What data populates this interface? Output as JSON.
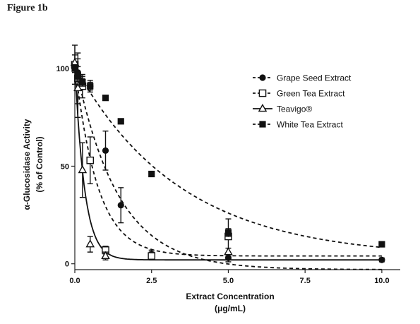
{
  "figure_label": "Figure 1b",
  "chart_data": {
    "type": "scatter",
    "xlabel": "Extract Concentration",
    "xlabel_unit": "(μg/mL)",
    "ylabel": "α-Glucosidase Activity",
    "ylabel_unit": "(% of Control)",
    "xlim": [
      0,
      10.6
    ],
    "ylim": [
      -3,
      112
    ],
    "x_ticks": [
      0.0,
      2.5,
      5.0,
      7.5,
      10.0
    ],
    "x_tick_labels": [
      "0.0",
      "2.5",
      "5.0",
      "7.5",
      "10.0"
    ],
    "y_ticks": [
      0,
      50,
      100
    ],
    "y_tick_labels": [
      "0",
      "50",
      "100"
    ],
    "legend_position": "top-right",
    "series": [
      {
        "name": "Grape Seed Extract",
        "marker": "circle",
        "line": "dash",
        "points": [
          {
            "x": 0.0,
            "y": 100,
            "err": 2
          },
          {
            "x": 0.1,
            "y": 98,
            "err": 3
          },
          {
            "x": 0.25,
            "y": 93,
            "err": 3
          },
          {
            "x": 0.5,
            "y": 91,
            "err": 3
          },
          {
            "x": 1.0,
            "y": 58,
            "err": 10
          },
          {
            "x": 1.5,
            "y": 30,
            "err": 9
          },
          {
            "x": 2.5,
            "y": 5,
            "err": 2
          },
          {
            "x": 5.0,
            "y": 3,
            "err": 2
          },
          {
            "x": 10.0,
            "y": 2,
            "err": 1
          }
        ],
        "fit": {
          "plateau": -3,
          "top": 103,
          "k": 0.72
        }
      },
      {
        "name": "Green Tea Extract",
        "marker": "square-open",
        "line": "dash",
        "points": [
          {
            "x": 0.0,
            "y": 102,
            "err": 10
          },
          {
            "x": 0.1,
            "y": 95,
            "err": 13
          },
          {
            "x": 0.25,
            "y": 91,
            "err": 6
          },
          {
            "x": 0.5,
            "y": 53,
            "err": 12
          },
          {
            "x": 1.0,
            "y": 7,
            "err": 2
          },
          {
            "x": 2.5,
            "y": 4,
            "err": 2
          },
          {
            "x": 5.0,
            "y": 14,
            "err": 9
          }
        ],
        "fit": {
          "plateau": 4,
          "top": 102,
          "k": 1.35
        }
      },
      {
        "name": "Teavigo®",
        "marker": "triangle-open",
        "line": "solid",
        "points": [
          {
            "x": 0.0,
            "y": 103,
            "err": 4
          },
          {
            "x": 0.1,
            "y": 90,
            "err": 15
          },
          {
            "x": 0.25,
            "y": 48,
            "err": 14
          },
          {
            "x": 0.5,
            "y": 10,
            "err": 4
          },
          {
            "x": 1.0,
            "y": 4,
            "err": 2
          },
          {
            "x": 5.0,
            "y": 6,
            "err": 2
          }
        ],
        "fit": {
          "plateau": 2,
          "top": 103,
          "k": 3.2
        }
      },
      {
        "name": "White Tea Extract",
        "marker": "square-filled",
        "line": "dash",
        "points": [
          {
            "x": 0.0,
            "y": 100,
            "err": 2
          },
          {
            "x": 0.1,
            "y": 96,
            "err": 2
          },
          {
            "x": 0.25,
            "y": 93,
            "err": 2
          },
          {
            "x": 0.5,
            "y": 91,
            "err": 2
          },
          {
            "x": 1.0,
            "y": 85,
            "err": 1
          },
          {
            "x": 1.5,
            "y": 73,
            "err": 1
          },
          {
            "x": 2.5,
            "y": 46,
            "err": 1
          },
          {
            "x": 5.0,
            "y": 16,
            "err": 2
          },
          {
            "x": 10.0,
            "y": 10,
            "err": 1
          }
        ],
        "fit": {
          "plateau": 3,
          "top": 101,
          "k": 0.29
        }
      }
    ]
  }
}
